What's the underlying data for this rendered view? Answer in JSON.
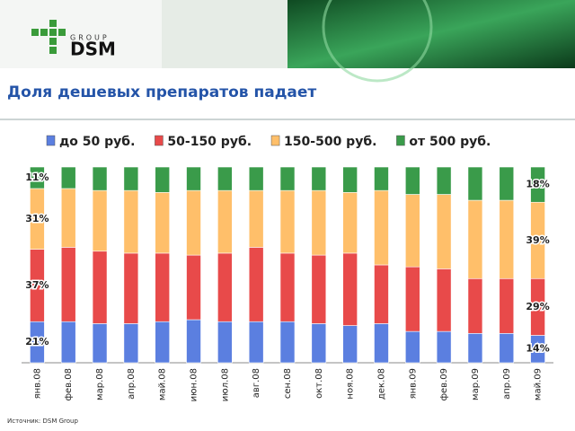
{
  "header": {
    "logo_top": "GROUP",
    "logo": "DSM"
  },
  "chart_data": {
    "type": "stacked_bar_100",
    "title": "Доля дешевых препаратов падает",
    "note": "Источник: DSM Group",
    "categories": [
      "янв.08",
      "фев.08",
      "мар.08",
      "апр.08",
      "май.08",
      "июн.08",
      "июл.08",
      "авг.08",
      "сен.08",
      "окт.08",
      "ноя.08",
      "дек.08",
      "янв.09",
      "фев.09",
      "мар.09",
      "апр.09",
      "май.09"
    ],
    "ylim": [
      0,
      100
    ],
    "series": [
      {
        "name": "до 50 руб.",
        "color": "#5b7fe0",
        "values": [
          21,
          21,
          20,
          20,
          21,
          22,
          21,
          21,
          21,
          20,
          19,
          20,
          16,
          16,
          15,
          15,
          14
        ],
        "value_labels": [
          "21%",
          null,
          null,
          null,
          null,
          null,
          null,
          null,
          null,
          null,
          null,
          null,
          null,
          null,
          null,
          null,
          "14%"
        ]
      },
      {
        "name": "50-150 руб.",
        "color": "#e84a4a",
        "values": [
          37,
          38,
          37,
          36,
          35,
          33,
          35,
          38,
          35,
          35,
          37,
          30,
          33,
          32,
          28,
          28,
          29
        ],
        "value_labels": [
          "37%",
          null,
          null,
          null,
          null,
          null,
          null,
          null,
          null,
          null,
          null,
          null,
          null,
          null,
          null,
          null,
          "29%"
        ]
      },
      {
        "name": "150-500 руб.",
        "color": "#ffbf6a",
        "values": [
          31,
          30,
          31,
          32,
          31,
          33,
          32,
          29,
          32,
          33,
          31,
          38,
          37,
          38,
          40,
          40,
          39
        ],
        "value_labels": [
          "31%",
          null,
          null,
          null,
          null,
          null,
          null,
          null,
          null,
          null,
          null,
          null,
          null,
          null,
          null,
          null,
          "39%"
        ]
      },
      {
        "name": "от 500 руб.",
        "color": "#3a9b4a",
        "values": [
          11,
          11,
          12,
          12,
          13,
          12,
          12,
          12,
          12,
          12,
          13,
          12,
          14,
          14,
          17,
          17,
          18
        ],
        "value_labels": [
          "11%",
          null,
          null,
          null,
          null,
          null,
          null,
          null,
          null,
          null,
          null,
          null,
          null,
          null,
          null,
          null,
          "18%"
        ]
      }
    ]
  }
}
